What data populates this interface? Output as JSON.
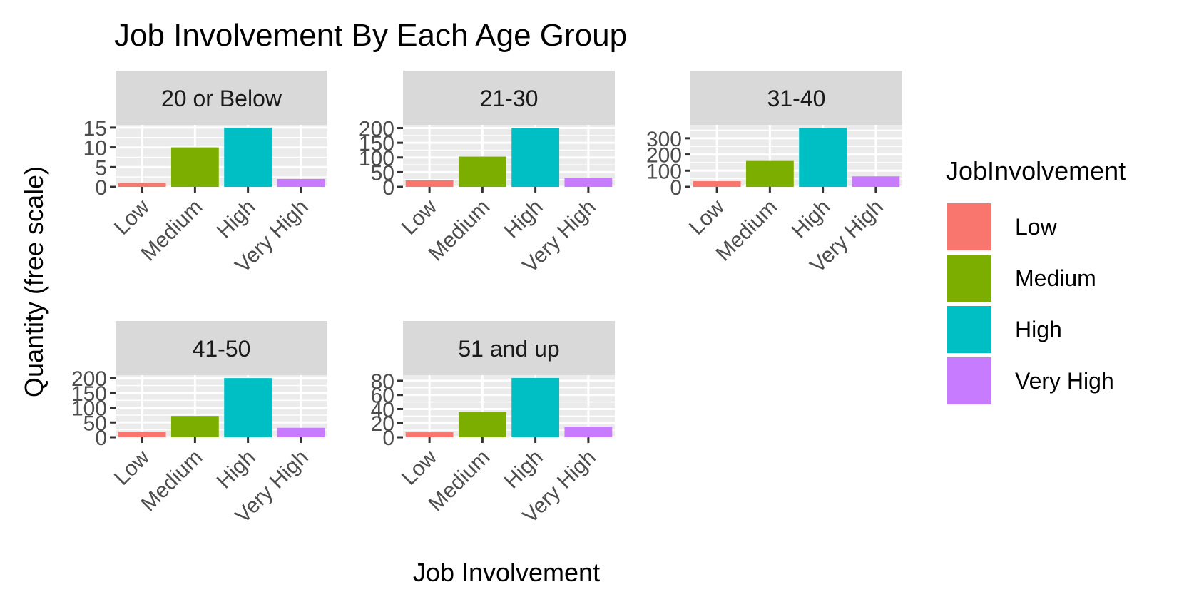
{
  "chart_data": {
    "type": "bar",
    "title": "Job Involvement By Each Age Group",
    "xlabel": "Job Involvement",
    "ylabel": "Quantity (free scale)",
    "grid": true,
    "legend_position": "right",
    "categories": [
      "Low",
      "Medium",
      "High",
      "Very High"
    ],
    "legend": {
      "title": "JobInvolvement",
      "entries": [
        "Low",
        "Medium",
        "High",
        "Very High"
      ]
    },
    "colors": {
      "Low": "#F8766D",
      "Medium": "#7CAE00",
      "High": "#00BFC4",
      "Very High": "#C77CFF"
    },
    "facets": [
      {
        "label": "20 or Below",
        "values": [
          1,
          10,
          15,
          2
        ],
        "ylim": [
          0,
          15.7
        ],
        "yticks": [
          0,
          5,
          10,
          15
        ]
      },
      {
        "label": "21-30",
        "values": [
          22,
          103,
          201,
          30
        ],
        "ylim": [
          0,
          211
        ],
        "yticks": [
          0,
          50,
          100,
          150,
          200
        ]
      },
      {
        "label": "31-40",
        "values": [
          35,
          160,
          365,
          65
        ],
        "ylim": [
          0,
          383
        ],
        "yticks": [
          0,
          100,
          200,
          300
        ]
      },
      {
        "label": "41-50",
        "values": [
          18,
          72,
          200,
          32
        ],
        "ylim": [
          0,
          210
        ],
        "yticks": [
          0,
          50,
          100,
          150,
          200
        ]
      },
      {
        "label": "51 and up",
        "values": [
          7,
          36,
          84,
          15
        ],
        "ylim": [
          0,
          88
        ],
        "yticks": [
          0,
          20,
          40,
          60,
          80
        ]
      }
    ]
  }
}
